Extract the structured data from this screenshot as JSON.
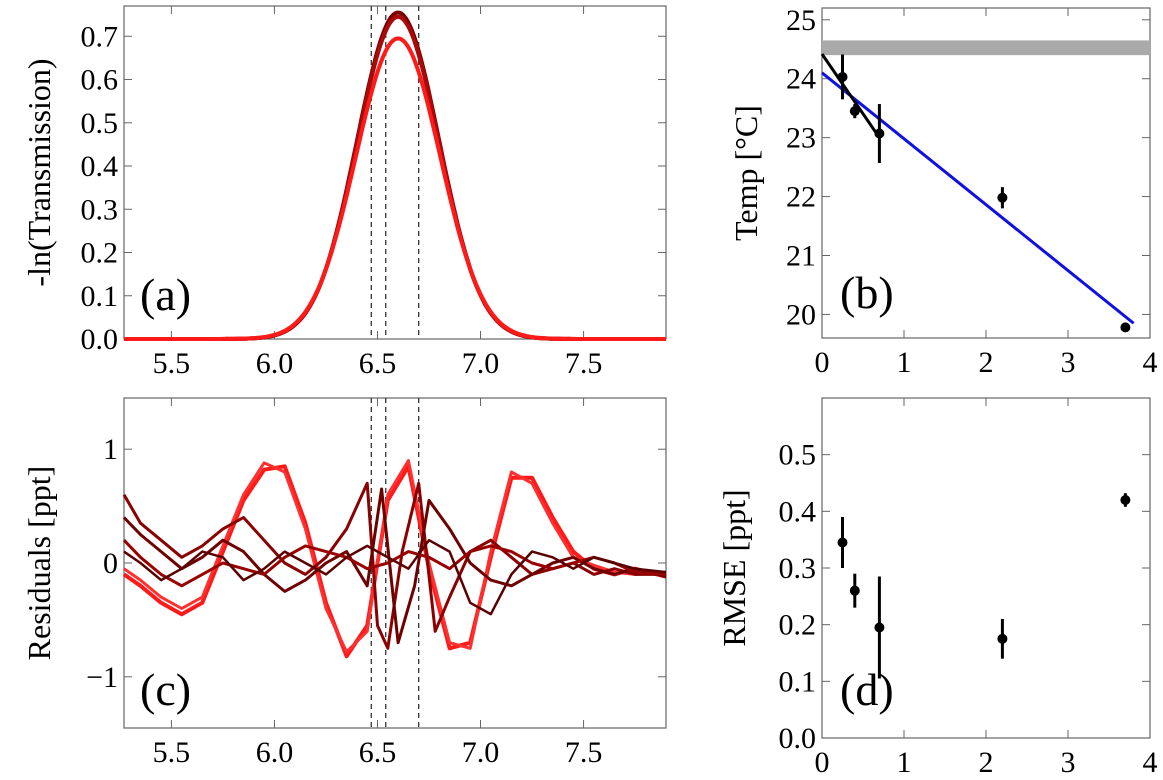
{
  "chart_data": [
    {
      "panel": "a",
      "type": "line",
      "tag": "(a)",
      "ylabel": "-ln(Transmission)",
      "xlabel": "",
      "xlim": [
        5.27,
        7.9
      ],
      "ylim": [
        0,
        0.77
      ],
      "xticks": [
        "5.5",
        "6.0",
        "6.5",
        "7.0",
        "7.5"
      ],
      "yticks": [
        "0.0",
        "0.1",
        "0.2",
        "0.3",
        "0.4",
        "0.5",
        "0.6",
        "0.7"
      ],
      "vlines": [
        6.47,
        6.54,
        6.7
      ],
      "series": [
        {
          "name": "dark",
          "color": "#7a0000",
          "center": 6.6,
          "amplitude": 0.755,
          "sigma": 0.2
        },
        {
          "name": "mid",
          "color": "#aa0a0a",
          "center": 6.6,
          "amplitude": 0.745,
          "sigma": 0.2
        },
        {
          "name": "bright",
          "color": "#ff1a1a",
          "center": 6.6,
          "amplitude": 0.695,
          "sigma": 0.205
        }
      ]
    },
    {
      "panel": "b",
      "type": "scatter",
      "tag": "(b)",
      "ylabel": "Temp [°C]",
      "xlabel": "",
      "xlim": [
        0,
        4
      ],
      "ylim": [
        19.6,
        25.2
      ],
      "xticks": [
        "0",
        "1",
        "2",
        "3",
        "4"
      ],
      "yticks": [
        "20",
        "21",
        "22",
        "23",
        "24",
        "25"
      ],
      "band": [
        24.4,
        24.65
      ],
      "points": [
        {
          "x": 0.25,
          "y": 24.03,
          "err": 0.38
        },
        {
          "x": 0.4,
          "y": 23.45,
          "err": 0.12
        },
        {
          "x": 0.7,
          "y": 23.07,
          "err": 0.5
        },
        {
          "x": 2.2,
          "y": 21.98,
          "err": 0.18
        },
        {
          "x": 3.7,
          "y": 19.78,
          "err": 0.05
        }
      ],
      "fits": [
        {
          "name": "blue-fit",
          "color": "#1010e0",
          "x": [
            0,
            3.8
          ],
          "y": [
            24.1,
            19.85
          ]
        },
        {
          "name": "black-fit",
          "color": "#000000",
          "x": [
            0,
            0.7
          ],
          "y": [
            24.42,
            23.0
          ]
        }
      ]
    },
    {
      "panel": "c",
      "type": "line",
      "tag": "(c)",
      "ylabel": "Residuals [ppt]",
      "xlabel": "",
      "xlim": [
        5.27,
        7.9
      ],
      "ylim": [
        -1.45,
        1.45
      ],
      "xticks": [
        "5.5",
        "6.0",
        "6.5",
        "7.0",
        "7.5"
      ],
      "yticks": [
        "1",
        "0",
        "−1"
      ],
      "ytick_values": [
        1,
        0,
        -1
      ],
      "vlines": [
        6.47,
        6.54,
        6.7
      ],
      "series": [
        {
          "name": "bright-1",
          "color": "#ff1a1a",
          "width": 4,
          "x": [
            5.27,
            5.35,
            5.45,
            5.55,
            5.65,
            5.75,
            5.85,
            5.95,
            6.05,
            6.15,
            6.25,
            6.35,
            6.45,
            6.55,
            6.65,
            6.75,
            6.85,
            6.95,
            7.05,
            7.15,
            7.25,
            7.35,
            7.45,
            7.55,
            7.65,
            7.75,
            7.9
          ],
          "y": [
            -0.1,
            -0.2,
            -0.35,
            -0.45,
            -0.35,
            0.1,
            0.55,
            0.82,
            0.85,
            0.35,
            -0.35,
            -0.82,
            -0.55,
            0.55,
            0.85,
            -0.05,
            -0.75,
            -0.7,
            0.05,
            0.75,
            0.75,
            0.4,
            0.1,
            -0.05,
            -0.1,
            -0.05,
            -0.12
          ]
        },
        {
          "name": "bright-2",
          "color": "#ff3030",
          "width": 3,
          "x": [
            5.27,
            5.35,
            5.45,
            5.55,
            5.65,
            5.75,
            5.85,
            5.95,
            6.05,
            6.15,
            6.25,
            6.35,
            6.45,
            6.55,
            6.65,
            6.75,
            6.85,
            6.95,
            7.05,
            7.15,
            7.25,
            7.35,
            7.45,
            7.55,
            7.65,
            7.75,
            7.9
          ],
          "y": [
            -0.05,
            -0.15,
            -0.3,
            -0.4,
            -0.3,
            0.15,
            0.6,
            0.88,
            0.8,
            0.3,
            -0.4,
            -0.78,
            -0.6,
            0.6,
            0.9,
            0.0,
            -0.7,
            -0.75,
            0.1,
            0.8,
            0.7,
            0.35,
            0.05,
            -0.02,
            -0.08,
            -0.1,
            -0.08
          ]
        },
        {
          "name": "dark-1",
          "color": "#8b0000",
          "width": 3,
          "x": [
            5.27,
            5.35,
            5.45,
            5.55,
            5.65,
            5.75,
            5.85,
            5.95,
            6.05,
            6.15,
            6.25,
            6.35,
            6.45,
            6.5,
            6.55,
            6.62,
            6.7,
            6.78,
            6.85,
            6.95,
            7.05,
            7.15,
            7.25,
            7.35,
            7.45,
            7.55,
            7.65,
            7.75,
            7.9
          ],
          "y": [
            0.6,
            0.35,
            0.2,
            0.05,
            0.15,
            0.3,
            0.4,
            0.2,
            0.0,
            -0.1,
            0.05,
            0.3,
            0.7,
            -0.55,
            -0.75,
            0.1,
            0.7,
            -0.6,
            -0.3,
            0.1,
            0.2,
            0.05,
            -0.1,
            -0.05,
            0.0,
            -0.1,
            -0.05,
            -0.1,
            -0.1
          ]
        },
        {
          "name": "dark-2",
          "color": "#6e0000",
          "width": 3,
          "x": [
            5.27,
            5.35,
            5.45,
            5.55,
            5.65,
            5.75,
            5.85,
            5.95,
            6.05,
            6.15,
            6.25,
            6.35,
            6.45,
            6.52,
            6.6,
            6.68,
            6.75,
            6.85,
            6.95,
            7.05,
            7.15,
            7.25,
            7.35,
            7.45,
            7.55,
            7.65,
            7.75,
            7.9
          ],
          "y": [
            0.4,
            0.25,
            0.1,
            -0.05,
            0.05,
            0.2,
            0.1,
            -0.1,
            -0.25,
            -0.15,
            0.0,
            0.1,
            -0.2,
            0.65,
            -0.7,
            -0.2,
            0.55,
            0.3,
            0.0,
            -0.15,
            -0.2,
            -0.1,
            0.0,
            0.05,
            -0.05,
            -0.1,
            -0.05,
            -0.12
          ]
        },
        {
          "name": "dark-3",
          "color": "#990000",
          "width": 3,
          "x": [
            5.27,
            5.35,
            5.45,
            5.55,
            5.65,
            5.75,
            5.85,
            5.95,
            6.05,
            6.15,
            6.25,
            6.35,
            6.45,
            6.55,
            6.65,
            6.75,
            6.85,
            6.95,
            7.05,
            7.15,
            7.25,
            7.35,
            7.45,
            7.55,
            7.65,
            7.75,
            7.9
          ],
          "y": [
            0.2,
            0.05,
            -0.1,
            -0.2,
            -0.1,
            0.0,
            -0.05,
            -0.1,
            0.05,
            0.15,
            0.1,
            0.05,
            -0.05,
            0.0,
            0.1,
            0.05,
            -0.05,
            0.1,
            0.15,
            0.1,
            0.0,
            -0.05,
            0.0,
            0.05,
            0.0,
            -0.08,
            -0.1
          ]
        },
        {
          "name": "dark-4",
          "color": "#5a0000",
          "width": 2.5,
          "x": [
            5.27,
            5.35,
            5.45,
            5.55,
            5.65,
            5.75,
            5.85,
            5.95,
            6.05,
            6.15,
            6.25,
            6.35,
            6.45,
            6.55,
            6.65,
            6.75,
            6.85,
            6.95,
            7.05,
            7.15,
            7.25,
            7.35,
            7.45,
            7.55,
            7.65,
            7.75,
            7.9
          ],
          "y": [
            0.1,
            0.0,
            -0.15,
            -0.05,
            0.1,
            0.05,
            -0.15,
            -0.05,
            0.1,
            0.0,
            -0.1,
            0.05,
            0.15,
            0.05,
            -0.05,
            0.2,
            0.1,
            -0.35,
            -0.45,
            -0.1,
            0.1,
            0.05,
            -0.05,
            0.05,
            0.0,
            -0.05,
            -0.08
          ]
        }
      ]
    },
    {
      "panel": "d",
      "type": "scatter",
      "tag": "(d)",
      "ylabel": "RMSE [ppt]",
      "xlabel": "",
      "xlim": [
        0,
        4
      ],
      "ylim": [
        0,
        0.6
      ],
      "xticks": [
        "0",
        "1",
        "2",
        "3",
        "4"
      ],
      "yticks": [
        "0.0",
        "0.1",
        "0.2",
        "0.3",
        "0.4",
        "0.5"
      ],
      "points": [
        {
          "x": 0.25,
          "y": 0.345,
          "err": 0.045
        },
        {
          "x": 0.4,
          "y": 0.26,
          "err": 0.03
        },
        {
          "x": 0.7,
          "y": 0.195,
          "err": 0.09
        },
        {
          "x": 2.2,
          "y": 0.175,
          "err": 0.035
        },
        {
          "x": 3.7,
          "y": 0.42,
          "err": 0.012
        }
      ]
    }
  ]
}
